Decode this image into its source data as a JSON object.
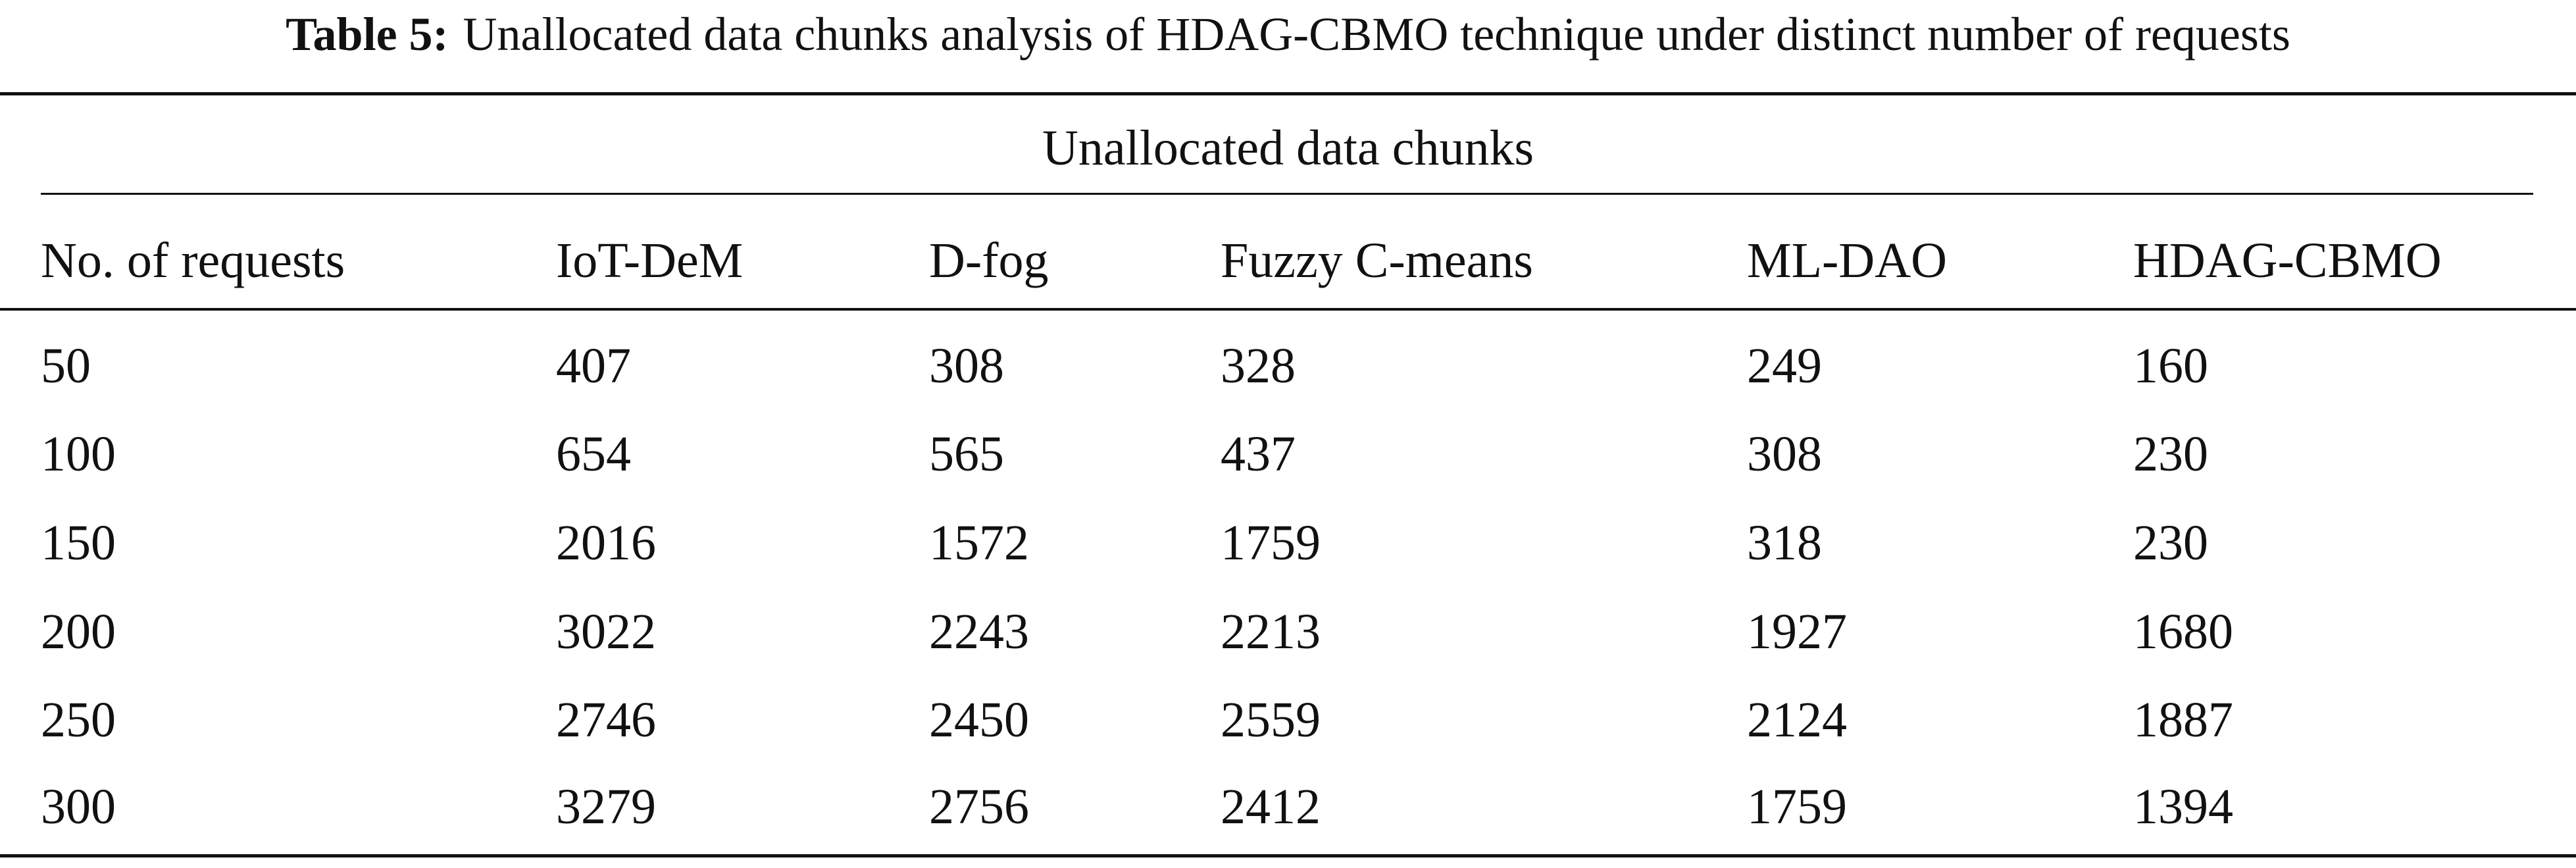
{
  "title": {
    "label": "Table 5:",
    "text": "Unallocated data chunks analysis of HDAG-CBMO technique under distinct number of requests"
  },
  "table": {
    "group_header": "Unallocated data chunks",
    "columns": [
      "No. of requests",
      "IoT-DeM",
      "D-fog",
      "Fuzzy C-means",
      "ML-DAO",
      "HDAG-CBMO"
    ],
    "rows": [
      [
        "50",
        "407",
        "308",
        "328",
        "249",
        "160"
      ],
      [
        "100",
        "654",
        "565",
        "437",
        "308",
        "230"
      ],
      [
        "150",
        "2016",
        "1572",
        "1759",
        "318",
        "230"
      ],
      [
        "200",
        "3022",
        "2243",
        "2213",
        "1927",
        "1680"
      ],
      [
        "250",
        "2746",
        "2450",
        "2559",
        "2124",
        "1887"
      ],
      [
        "300",
        "3279",
        "2756",
        "2412",
        "1759",
        "1394"
      ]
    ]
  }
}
